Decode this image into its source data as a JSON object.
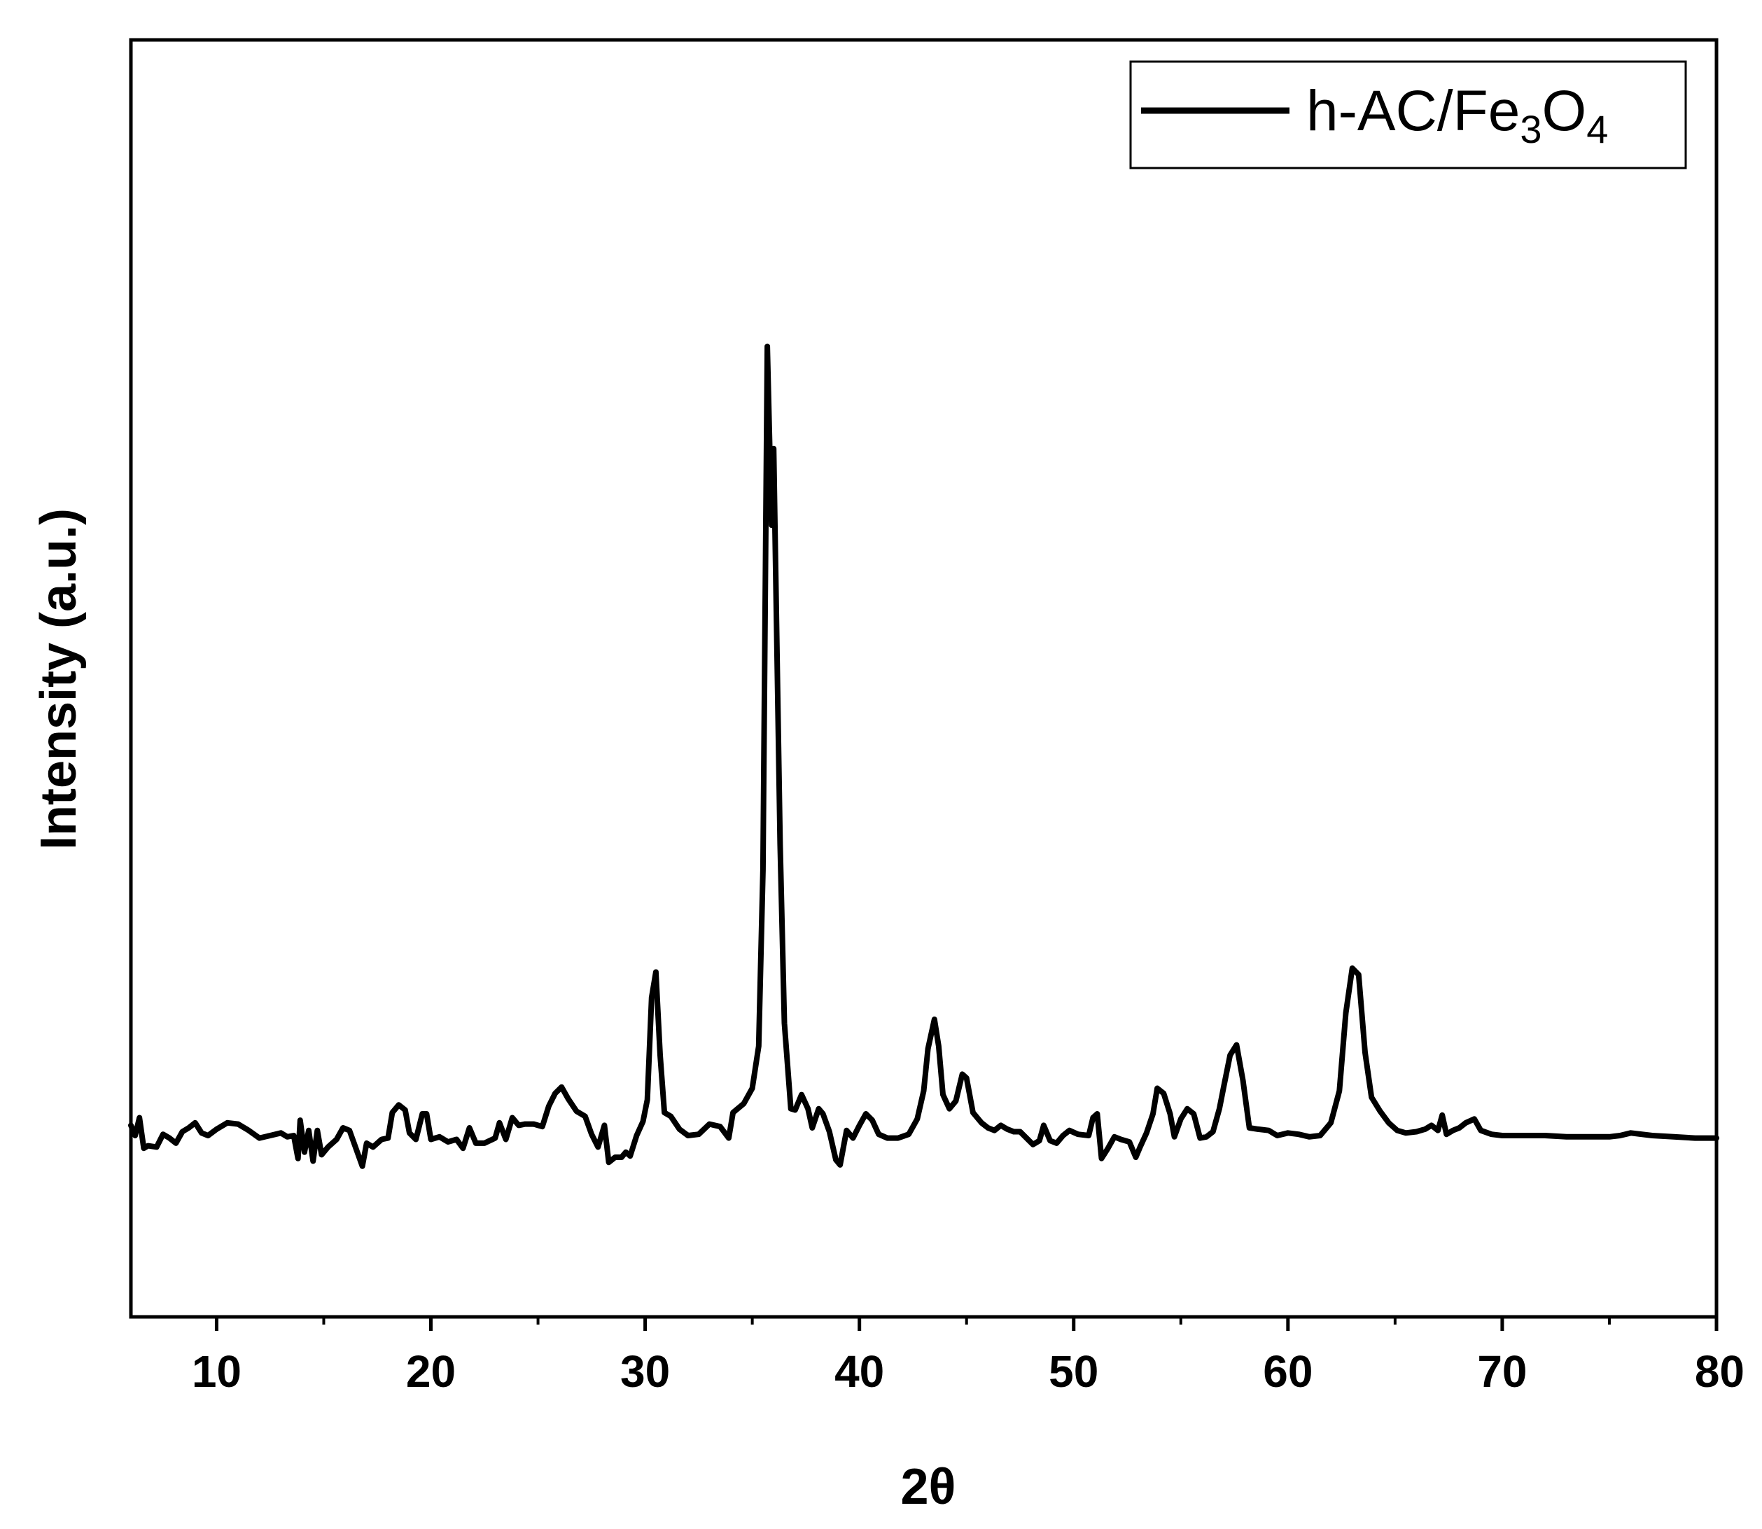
{
  "chart_data": {
    "type": "line",
    "title": "",
    "xlabel": "2θ",
    "ylabel": "Intensity (a.u.)",
    "xlim": [
      6,
      80
    ],
    "ylim": [
      0,
      100
    ],
    "x_major_ticks": [
      10,
      20,
      30,
      40,
      50,
      60,
      70,
      80
    ],
    "x_tick_labels": [
      "10",
      "20",
      "30",
      "40",
      "50",
      "60",
      "70",
      "80"
    ],
    "x_minor_ticks": [
      15,
      25,
      35,
      45,
      55,
      65,
      75
    ],
    "y_tick_labels": [],
    "grid": false,
    "legend": {
      "position": "top-right",
      "entries": [
        {
          "label_parts": [
            {
              "text": "h-AC/Fe"
            },
            {
              "text": "3",
              "sub": true
            },
            {
              "text": "O"
            },
            {
              "text": "4",
              "sub": true
            }
          ]
        }
      ]
    },
    "series": [
      {
        "name": "h-AC/Fe3O4",
        "color": "#000000",
        "points": [
          [
            6.0,
            15.0
          ],
          [
            6.2,
            14.2
          ],
          [
            6.4,
            15.6
          ],
          [
            6.6,
            13.2
          ],
          [
            6.8,
            13.4
          ],
          [
            7.2,
            13.3
          ],
          [
            7.5,
            14.3
          ],
          [
            7.8,
            14.0
          ],
          [
            8.1,
            13.6
          ],
          [
            8.4,
            14.5
          ],
          [
            8.7,
            14.8
          ],
          [
            9.0,
            15.2
          ],
          [
            9.3,
            14.4
          ],
          [
            9.6,
            14.2
          ],
          [
            10.0,
            14.7
          ],
          [
            10.5,
            15.2
          ],
          [
            11.0,
            15.1
          ],
          [
            11.5,
            14.6
          ],
          [
            12.0,
            14.0
          ],
          [
            12.5,
            14.2
          ],
          [
            13.0,
            14.4
          ],
          [
            13.3,
            14.1
          ],
          [
            13.6,
            14.2
          ],
          [
            13.8,
            12.4
          ],
          [
            13.9,
            15.4
          ],
          [
            14.1,
            12.9
          ],
          [
            14.3,
            14.6
          ],
          [
            14.5,
            12.2
          ],
          [
            14.7,
            14.6
          ],
          [
            14.9,
            12.7
          ],
          [
            15.2,
            13.3
          ],
          [
            15.6,
            13.9
          ],
          [
            15.9,
            14.8
          ],
          [
            16.2,
            14.6
          ],
          [
            16.5,
            13.2
          ],
          [
            16.8,
            11.8
          ],
          [
            17.0,
            13.6
          ],
          [
            17.3,
            13.3
          ],
          [
            17.7,
            13.9
          ],
          [
            18.0,
            14.0
          ],
          [
            18.2,
            16.0
          ],
          [
            18.5,
            16.6
          ],
          [
            18.8,
            16.2
          ],
          [
            19.0,
            14.4
          ],
          [
            19.3,
            13.9
          ],
          [
            19.6,
            15.9
          ],
          [
            19.8,
            15.9
          ],
          [
            20.0,
            13.9
          ],
          [
            20.4,
            14.1
          ],
          [
            20.8,
            13.7
          ],
          [
            21.2,
            13.9
          ],
          [
            21.5,
            13.2
          ],
          [
            21.8,
            14.8
          ],
          [
            22.1,
            13.6
          ],
          [
            22.5,
            13.6
          ],
          [
            23.0,
            14.0
          ],
          [
            23.2,
            15.2
          ],
          [
            23.5,
            13.9
          ],
          [
            23.8,
            15.6
          ],
          [
            24.1,
            15.0
          ],
          [
            24.4,
            15.1
          ],
          [
            24.8,
            15.1
          ],
          [
            25.2,
            14.9
          ],
          [
            25.5,
            16.5
          ],
          [
            25.8,
            17.5
          ],
          [
            26.1,
            18.0
          ],
          [
            26.4,
            17.1
          ],
          [
            26.8,
            16.1
          ],
          [
            27.2,
            15.7
          ],
          [
            27.5,
            14.3
          ],
          [
            27.8,
            13.3
          ],
          [
            28.1,
            15.0
          ],
          [
            28.3,
            12.1
          ],
          [
            28.6,
            12.5
          ],
          [
            28.9,
            12.5
          ],
          [
            29.1,
            12.9
          ],
          [
            29.3,
            12.6
          ],
          [
            29.6,
            14.2
          ],
          [
            29.9,
            15.3
          ],
          [
            30.1,
            17.0
          ],
          [
            30.3,
            25.0
          ],
          [
            30.5,
            27.0
          ],
          [
            30.7,
            20.5
          ],
          [
            30.9,
            16.0
          ],
          [
            31.2,
            15.7
          ],
          [
            31.6,
            14.7
          ],
          [
            32.0,
            14.2
          ],
          [
            32.5,
            14.3
          ],
          [
            33.0,
            15.1
          ],
          [
            33.5,
            14.9
          ],
          [
            33.9,
            14.0
          ],
          [
            34.1,
            16.0
          ],
          [
            34.6,
            16.7
          ],
          [
            35.0,
            17.9
          ],
          [
            35.3,
            21.2
          ],
          [
            35.5,
            35.0
          ],
          [
            35.7,
            76.0
          ],
          [
            35.9,
            62.0
          ],
          [
            36.0,
            68.0
          ],
          [
            36.3,
            37.0
          ],
          [
            36.5,
            23.0
          ],
          [
            36.8,
            16.3
          ],
          [
            37.0,
            16.2
          ],
          [
            37.3,
            17.4
          ],
          [
            37.6,
            16.3
          ],
          [
            37.8,
            14.8
          ],
          [
            38.1,
            16.3
          ],
          [
            38.3,
            15.9
          ],
          [
            38.6,
            14.5
          ],
          [
            38.9,
            12.3
          ],
          [
            39.1,
            11.9
          ],
          [
            39.4,
            14.6
          ],
          [
            39.7,
            14.0
          ],
          [
            40.0,
            15.0
          ],
          [
            40.3,
            15.9
          ],
          [
            40.6,
            15.4
          ],
          [
            40.9,
            14.3
          ],
          [
            41.3,
            14.0
          ],
          [
            41.8,
            14.0
          ],
          [
            42.3,
            14.3
          ],
          [
            42.7,
            15.5
          ],
          [
            43.0,
            17.7
          ],
          [
            43.2,
            21.0
          ],
          [
            43.5,
            23.3
          ],
          [
            43.7,
            21.2
          ],
          [
            43.9,
            17.4
          ],
          [
            44.2,
            16.3
          ],
          [
            44.5,
            16.9
          ],
          [
            44.8,
            19.0
          ],
          [
            45.0,
            18.7
          ],
          [
            45.3,
            16.0
          ],
          [
            45.7,
            15.2
          ],
          [
            46.0,
            14.8
          ],
          [
            46.3,
            14.6
          ],
          [
            46.6,
            15.0
          ],
          [
            46.9,
            14.7
          ],
          [
            47.2,
            14.5
          ],
          [
            47.5,
            14.5
          ],
          [
            47.8,
            14.0
          ],
          [
            48.1,
            13.5
          ],
          [
            48.4,
            13.8
          ],
          [
            48.6,
            15.0
          ],
          [
            48.9,
            13.8
          ],
          [
            49.2,
            13.6
          ],
          [
            49.5,
            14.2
          ],
          [
            49.8,
            14.6
          ],
          [
            50.2,
            14.3
          ],
          [
            50.7,
            14.2
          ],
          [
            50.9,
            15.6
          ],
          [
            51.1,
            15.9
          ],
          [
            51.3,
            12.4
          ],
          [
            51.6,
            13.2
          ],
          [
            51.9,
            14.1
          ],
          [
            52.2,
            13.9
          ],
          [
            52.6,
            13.7
          ],
          [
            52.9,
            12.5
          ],
          [
            53.1,
            13.3
          ],
          [
            53.4,
            14.4
          ],
          [
            53.7,
            15.9
          ],
          [
            53.9,
            17.9
          ],
          [
            54.2,
            17.5
          ],
          [
            54.5,
            15.9
          ],
          [
            54.7,
            14.1
          ],
          [
            55.0,
            15.5
          ],
          [
            55.3,
            16.3
          ],
          [
            55.6,
            15.9
          ],
          [
            55.9,
            14.0
          ],
          [
            56.2,
            14.1
          ],
          [
            56.5,
            14.5
          ],
          [
            56.8,
            16.3
          ],
          [
            57.0,
            18.0
          ],
          [
            57.3,
            20.5
          ],
          [
            57.6,
            21.3
          ],
          [
            57.9,
            18.5
          ],
          [
            58.2,
            14.8
          ],
          [
            58.6,
            14.7
          ],
          [
            59.1,
            14.6
          ],
          [
            59.5,
            14.2
          ],
          [
            60.0,
            14.4
          ],
          [
            60.5,
            14.3
          ],
          [
            61.0,
            14.1
          ],
          [
            61.5,
            14.2
          ],
          [
            62.0,
            15.2
          ],
          [
            62.4,
            17.7
          ],
          [
            62.7,
            23.8
          ],
          [
            63.0,
            27.3
          ],
          [
            63.3,
            26.8
          ],
          [
            63.6,
            20.7
          ],
          [
            63.9,
            17.2
          ],
          [
            64.3,
            16.1
          ],
          [
            64.7,
            15.2
          ],
          [
            65.1,
            14.6
          ],
          [
            65.5,
            14.4
          ],
          [
            66.0,
            14.5
          ],
          [
            66.4,
            14.7
          ],
          [
            66.7,
            15.0
          ],
          [
            67.0,
            14.6
          ],
          [
            67.2,
            15.8
          ],
          [
            67.4,
            14.3
          ],
          [
            67.7,
            14.6
          ],
          [
            68.0,
            14.8
          ],
          [
            68.3,
            15.2
          ],
          [
            68.7,
            15.5
          ],
          [
            69.0,
            14.6
          ],
          [
            69.5,
            14.3
          ],
          [
            70.0,
            14.2
          ],
          [
            71.0,
            14.2
          ],
          [
            72.0,
            14.2
          ],
          [
            73.0,
            14.1
          ],
          [
            74.0,
            14.1
          ],
          [
            75.0,
            14.1
          ],
          [
            75.5,
            14.2
          ],
          [
            76.0,
            14.4
          ],
          [
            77.0,
            14.2
          ],
          [
            78.0,
            14.1
          ],
          [
            79.0,
            14.0
          ],
          [
            80.0,
            14.0
          ]
        ]
      }
    ]
  }
}
